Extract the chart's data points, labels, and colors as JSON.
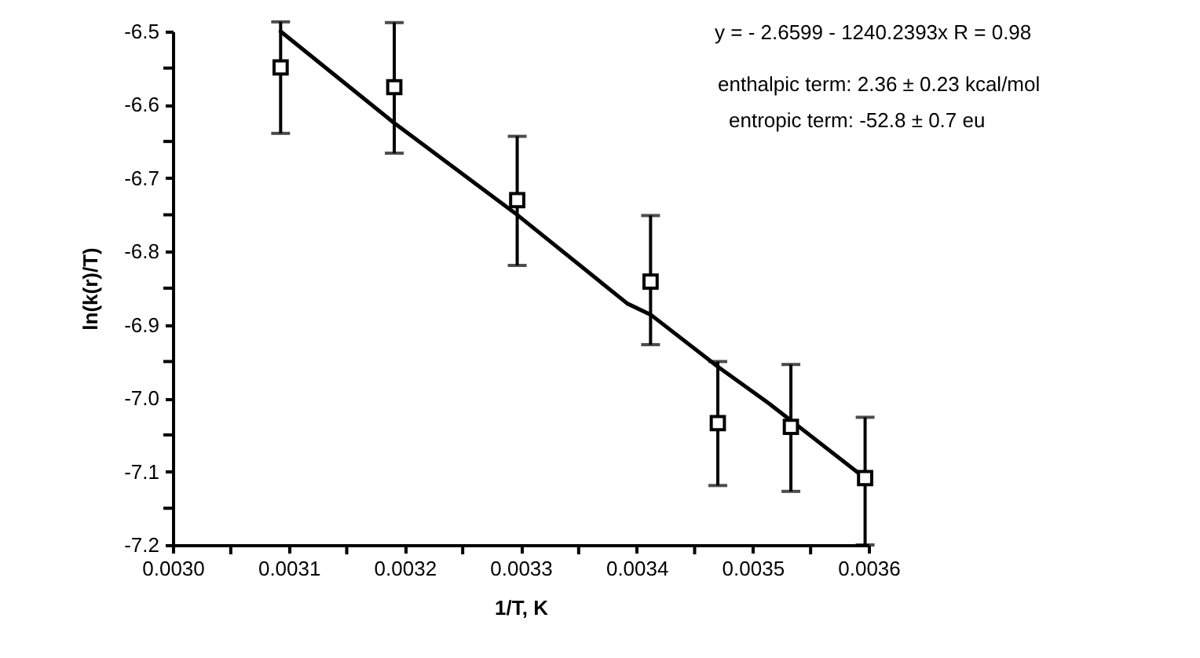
{
  "chart_data": {
    "type": "scatter",
    "xlabel": "1/T, K",
    "ylabel": "ln(k(r)/T)",
    "annotations": [
      "y =  - 2.6599 - 1240.2393x   R = 0.98",
      "enthalpic term: 2.36 ± 0.23 kcal/mol",
      "entropic term:  -52.8 ± 0.7 eu"
    ],
    "xlim": [
      0.003,
      0.0036
    ],
    "ylim": [
      -7.2,
      -6.5
    ],
    "xticks": [
      {
        "value": 0.003,
        "label": "0.0030"
      },
      {
        "value": 0.00305,
        "label": null
      },
      {
        "value": 0.0031,
        "label": "0.0031"
      },
      {
        "value": 0.00315,
        "label": null
      },
      {
        "value": 0.0032,
        "label": "0.0032"
      },
      {
        "value": 0.00325,
        "label": null
      },
      {
        "value": 0.0033,
        "label": "0.0033"
      },
      {
        "value": 0.00335,
        "label": null
      },
      {
        "value": 0.0034,
        "label": "0.0034"
      },
      {
        "value": 0.00345,
        "label": null
      },
      {
        "value": 0.0035,
        "label": "0.0035"
      },
      {
        "value": 0.00355,
        "label": null
      },
      {
        "value": 0.0036,
        "label": "0.0036"
      }
    ],
    "yticks": [
      {
        "value": -7.2,
        "label": "-7.2"
      },
      {
        "value": -7.15,
        "label": null
      },
      {
        "value": -7.1,
        "label": "-7.1"
      },
      {
        "value": -7.05,
        "label": null
      },
      {
        "value": -7,
        "label": "-7.0"
      },
      {
        "value": -6.95,
        "label": null
      },
      {
        "value": -6.9,
        "label": "-6.9"
      },
      {
        "value": -6.85,
        "label": null
      },
      {
        "value": -6.8,
        "label": "-6.8"
      },
      {
        "value": -6.75,
        "label": null
      },
      {
        "value": -6.7,
        "label": "-6.7"
      },
      {
        "value": -6.65,
        "label": null
      },
      {
        "value": -6.6,
        "label": "-6.6"
      },
      {
        "value": -6.55,
        "label": null
      },
      {
        "value": -6.5,
        "label": "-6.5"
      }
    ],
    "grid": false,
    "series": [
      {
        "type": "scatter",
        "marker": "square",
        "color": "#000000",
        "x": [
          0.003093,
          0.003191,
          0.003297,
          0.003412,
          0.00347,
          0.003533,
          0.003597
        ],
        "values": [
          -6.549,
          -6.576,
          -6.73,
          -6.841,
          -7.034,
          -7.039,
          -7.109
        ],
        "errors": [
          [
            -6.639,
            -6.487
          ],
          [
            -6.666,
            -6.488
          ],
          [
            -6.819,
            -6.643
          ],
          [
            -6.927,
            -6.751
          ],
          [
            -7.119,
            -6.95
          ],
          [
            -7.127,
            -6.954
          ],
          [
            -7.2,
            -7.026
          ]
        ]
      },
      {
        "type": "line",
        "marker": "none",
        "line_style": "solid",
        "color": "#000000",
        "x": [
          0.003093,
          0.003191,
          0.003297,
          0.003392,
          0.003412,
          0.00347,
          0.003514,
          0.003597
        ],
        "values": [
          -6.5,
          -6.625,
          -6.75,
          -6.871,
          -6.886,
          -6.957,
          -7.007,
          -7.109
        ]
      }
    ]
  }
}
